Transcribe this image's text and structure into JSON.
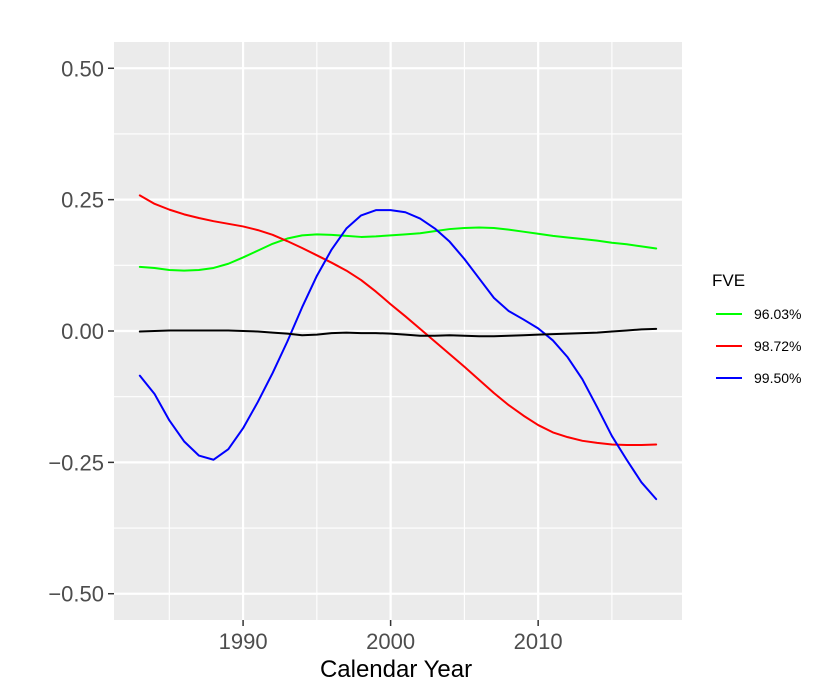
{
  "chart_data": {
    "type": "line",
    "xlabel": "Calendar Year",
    "ylabel": "",
    "xlim": [
      1981.25,
      2019.75
    ],
    "ylim": [
      -0.55,
      0.55
    ],
    "x_ticks": [
      1990,
      2000,
      2010
    ],
    "y_ticks": [
      0.5,
      0.25,
      0.0,
      -0.25,
      -0.5
    ],
    "x_tick_labels": [
      "1990",
      "2000",
      "2010"
    ],
    "y_tick_labels": [
      "0.50",
      "0.25",
      "0.00",
      "−0.25",
      "−0.50"
    ],
    "grid": true,
    "legend": {
      "title": "FVE",
      "position": "right",
      "entries": [
        {
          "label": "96.03%",
          "color": "#00ff00"
        },
        {
          "label": "98.72%",
          "color": "#ff0000"
        },
        {
          "label": "99.50%",
          "color": "#0000ff"
        }
      ]
    },
    "series": [
      {
        "color": "#00ff00",
        "x": [
          1983,
          1984,
          1985,
          1986,
          1987,
          1988,
          1989,
          1990,
          1991,
          1992,
          1993,
          1994,
          1995,
          1996,
          1997,
          1998,
          1999,
          2000,
          2001,
          2002,
          2003,
          2004,
          2005,
          2006,
          2007,
          2008,
          2009,
          2010,
          2011,
          2012,
          2013,
          2014,
          2015,
          2016,
          2017,
          2018
        ],
        "y": [
          0.122,
          0.12,
          0.116,
          0.115,
          0.116,
          0.12,
          0.128,
          0.14,
          0.153,
          0.166,
          0.176,
          0.182,
          0.184,
          0.183,
          0.181,
          0.179,
          0.18,
          0.182,
          0.184,
          0.186,
          0.19,
          0.194,
          0.196,
          0.197,
          0.196,
          0.193,
          0.189,
          0.185,
          0.181,
          0.178,
          0.175,
          0.172,
          0.168,
          0.165,
          0.161,
          0.157
        ]
      },
      {
        "color": "#ff0000",
        "x": [
          1983,
          1984,
          1985,
          1986,
          1987,
          1988,
          1989,
          1990,
          1991,
          1992,
          1993,
          1994,
          1995,
          1996,
          1997,
          1998,
          1999,
          2000,
          2001,
          2002,
          2003,
          2004,
          2005,
          2006,
          2007,
          2008,
          2009,
          2010,
          2011,
          2012,
          2013,
          2014,
          2015,
          2016,
          2017,
          2018
        ],
        "y": [
          0.258,
          0.242,
          0.231,
          0.222,
          0.215,
          0.209,
          0.204,
          0.199,
          0.192,
          0.183,
          0.171,
          0.158,
          0.144,
          0.13,
          0.115,
          0.097,
          0.075,
          0.051,
          0.028,
          0.004,
          -0.02,
          -0.044,
          -0.068,
          -0.093,
          -0.118,
          -0.141,
          -0.161,
          -0.179,
          -0.193,
          -0.202,
          -0.209,
          -0.213,
          -0.216,
          -0.217,
          -0.217,
          -0.216
        ]
      },
      {
        "color": "#0000ff",
        "x": [
          1983,
          1984,
          1985,
          1986,
          1987,
          1988,
          1989,
          1990,
          1991,
          1992,
          1993,
          1994,
          1995,
          1996,
          1997,
          1998,
          1999,
          2000,
          2001,
          2002,
          2003,
          2004,
          2005,
          2006,
          2007,
          2008,
          2009,
          2010,
          2011,
          2012,
          2013,
          2014,
          2015,
          2016,
          2017,
          2018
        ],
        "y": [
          -0.085,
          -0.12,
          -0.17,
          -0.21,
          -0.237,
          -0.245,
          -0.225,
          -0.185,
          -0.135,
          -0.08,
          -0.02,
          0.045,
          0.105,
          0.155,
          0.195,
          0.22,
          0.23,
          0.23,
          0.226,
          0.214,
          0.195,
          0.17,
          0.137,
          0.1,
          0.063,
          0.038,
          0.022,
          0.005,
          -0.018,
          -0.05,
          -0.092,
          -0.145,
          -0.2,
          -0.245,
          -0.288,
          -0.32
        ]
      },
      {
        "color": "#000000",
        "x": [
          1983,
          1984,
          1985,
          1986,
          1987,
          1988,
          1989,
          1990,
          1991,
          1992,
          1993,
          1994,
          1995,
          1996,
          1997,
          1998,
          1999,
          2000,
          2001,
          2002,
          2003,
          2004,
          2005,
          2006,
          2007,
          2008,
          2009,
          2010,
          2011,
          2012,
          2013,
          2014,
          2015,
          2016,
          2017,
          2018
        ],
        "y": [
          -0.001,
          0.0,
          0.001,
          0.001,
          0.001,
          0.001,
          0.001,
          0.0,
          -0.001,
          -0.003,
          -0.005,
          -0.008,
          -0.007,
          -0.004,
          -0.003,
          -0.004,
          -0.004,
          -0.005,
          -0.007,
          -0.009,
          -0.009,
          -0.008,
          -0.009,
          -0.01,
          -0.01,
          -0.009,
          -0.008,
          -0.007,
          -0.006,
          -0.005,
          -0.004,
          -0.003,
          -0.001,
          0.001,
          0.003,
          0.004
        ]
      }
    ]
  }
}
